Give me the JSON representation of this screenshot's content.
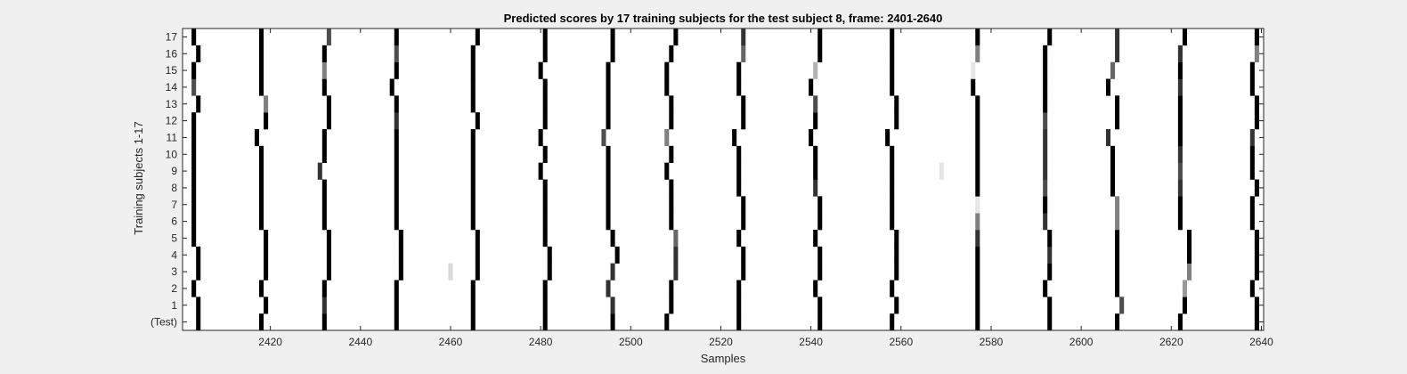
{
  "chart_data": {
    "type": "heatmap",
    "title": "Predicted scores by 17 training subjects for the test subject 8, frame: 2401-2640",
    "xlabel": "Samples",
    "ylabel": "Training subjects 1-17",
    "xlim": [
      2401,
      2640
    ],
    "xticks": [
      2420,
      2440,
      2460,
      2480,
      2500,
      2520,
      2540,
      2560,
      2580,
      2600,
      2620,
      2640
    ],
    "rows": [
      "(Test)",
      "1",
      "2",
      "3",
      "4",
      "5",
      "6",
      "7",
      "8",
      "9",
      "10",
      "11",
      "12",
      "13",
      "14",
      "15",
      "16",
      "17"
    ],
    "colormap": "white = 0 score, black = 1 score (grayscale)",
    "beats": {
      "(Test)": [
        [
          2404,
          1
        ],
        [
          2418,
          1
        ],
        [
          2432,
          1
        ],
        [
          2448,
          1
        ],
        [
          2465,
          1
        ],
        [
          2481,
          1
        ],
        [
          2496,
          1
        ],
        [
          2508,
          1
        ],
        [
          2524,
          1
        ],
        [
          2542,
          1
        ],
        [
          2558,
          1
        ],
        [
          2577,
          1
        ],
        [
          2593,
          1
        ],
        [
          2608,
          1
        ],
        [
          2622,
          1
        ],
        [
          2639,
          1
        ]
      ],
      "1": [
        [
          2404,
          1
        ],
        [
          2419,
          1
        ],
        [
          2432,
          0.8
        ],
        [
          2448,
          1
        ],
        [
          2465,
          1
        ],
        [
          2481,
          1
        ],
        [
          2496,
          0.8
        ],
        [
          2509,
          1
        ],
        [
          2524,
          1
        ],
        [
          2542,
          1
        ],
        [
          2559,
          1
        ],
        [
          2577,
          1
        ],
        [
          2593,
          1
        ],
        [
          2609,
          0.7
        ],
        [
          2623,
          1
        ],
        [
          2639,
          1
        ]
      ],
      "2": [
        [
          2403,
          1
        ],
        [
          2418,
          1
        ],
        [
          2432,
          1
        ],
        [
          2448,
          1
        ],
        [
          2465,
          1
        ],
        [
          2481,
          1
        ],
        [
          2495,
          0.8
        ],
        [
          2509,
          1
        ],
        [
          2524,
          1
        ],
        [
          2541,
          1
        ],
        [
          2558,
          1
        ],
        [
          2577,
          1
        ],
        [
          2592,
          1
        ],
        [
          2608,
          1
        ],
        [
          2623,
          0.4
        ],
        [
          2638,
          1
        ]
      ],
      "3": [
        [
          2404,
          1
        ],
        [
          2419,
          1
        ],
        [
          2433,
          1
        ],
        [
          2449,
          1
        ],
        [
          2460,
          0.15
        ],
        [
          2466,
          1
        ],
        [
          2482,
          1
        ],
        [
          2496,
          0.8
        ],
        [
          2510,
          0.8
        ],
        [
          2525,
          1
        ],
        [
          2542,
          1
        ],
        [
          2559,
          1
        ],
        [
          2577,
          1
        ],
        [
          2593,
          1
        ],
        [
          2608,
          1
        ],
        [
          2624,
          0.5
        ],
        [
          2639,
          1
        ]
      ],
      "4": [
        [
          2404,
          1
        ],
        [
          2419,
          1
        ],
        [
          2433,
          1
        ],
        [
          2449,
          1
        ],
        [
          2466,
          1
        ],
        [
          2482,
          1
        ],
        [
          2497,
          1
        ],
        [
          2510,
          0.8
        ],
        [
          2525,
          1
        ],
        [
          2542,
          1
        ],
        [
          2559,
          1
        ],
        [
          2577,
          1
        ],
        [
          2593,
          0.8
        ],
        [
          2608,
          1
        ],
        [
          2624,
          1
        ],
        [
          2639,
          1
        ]
      ],
      "5": [
        [
          2403,
          1
        ],
        [
          2419,
          1
        ],
        [
          2433,
          1
        ],
        [
          2449,
          1
        ],
        [
          2466,
          1
        ],
        [
          2481,
          1
        ],
        [
          2496,
          1
        ],
        [
          2510,
          0.6
        ],
        [
          2524,
          1
        ],
        [
          2541,
          1
        ],
        [
          2559,
          1
        ],
        [
          2577,
          0.8
        ],
        [
          2593,
          1
        ],
        [
          2608,
          1
        ],
        [
          2624,
          1
        ],
        [
          2639,
          1
        ]
      ],
      "6": [
        [
          2403,
          1
        ],
        [
          2418,
          1
        ],
        [
          2432,
          1
        ],
        [
          2448,
          1
        ],
        [
          2465,
          1
        ],
        [
          2481,
          1
        ],
        [
          2495,
          1
        ],
        [
          2509,
          1
        ],
        [
          2525,
          1
        ],
        [
          2542,
          1
        ],
        [
          2558,
          1
        ],
        [
          2577,
          0.5
        ],
        [
          2592,
          0.8
        ],
        [
          2608,
          0.5
        ],
        [
          2622,
          1
        ],
        [
          2638,
          1
        ]
      ],
      "7": [
        [
          2403,
          1
        ],
        [
          2418,
          1
        ],
        [
          2432,
          1
        ],
        [
          2448,
          1
        ],
        [
          2465,
          1
        ],
        [
          2481,
          1
        ],
        [
          2495,
          1
        ],
        [
          2509,
          1
        ],
        [
          2525,
          1
        ],
        [
          2542,
          1
        ],
        [
          2558,
          1
        ],
        [
          2577,
          0.1
        ],
        [
          2592,
          1
        ],
        [
          2608,
          0.5
        ],
        [
          2622,
          1
        ],
        [
          2638,
          1
        ]
      ],
      "8": [
        [
          2403,
          1
        ],
        [
          2418,
          1
        ],
        [
          2432,
          1
        ],
        [
          2448,
          1
        ],
        [
          2465,
          1
        ],
        [
          2481,
          1
        ],
        [
          2495,
          1
        ],
        [
          2509,
          1
        ],
        [
          2524,
          1
        ],
        [
          2541,
          0.8
        ],
        [
          2558,
          1
        ],
        [
          2577,
          1
        ],
        [
          2592,
          0.7
        ],
        [
          2607,
          1
        ],
        [
          2622,
          0.8
        ],
        [
          2639,
          1
        ]
      ],
      "9": [
        [
          2403,
          1
        ],
        [
          2418,
          1
        ],
        [
          2431,
          0.8
        ],
        [
          2448,
          1
        ],
        [
          2465,
          1
        ],
        [
          2480,
          1
        ],
        [
          2495,
          1
        ],
        [
          2508,
          1
        ],
        [
          2524,
          1
        ],
        [
          2541,
          1
        ],
        [
          2558,
          1
        ],
        [
          2569,
          0.1
        ],
        [
          2577,
          1
        ],
        [
          2592,
          0.8
        ],
        [
          2607,
          1
        ],
        [
          2622,
          0.7
        ],
        [
          2638,
          1
        ]
      ],
      "10": [
        [
          2403,
          1
        ],
        [
          2418,
          1
        ],
        [
          2432,
          1
        ],
        [
          2448,
          1
        ],
        [
          2465,
          1
        ],
        [
          2481,
          1
        ],
        [
          2495,
          1
        ],
        [
          2509,
          1
        ],
        [
          2524,
          1
        ],
        [
          2541,
          1
        ],
        [
          2558,
          1
        ],
        [
          2577,
          1
        ],
        [
          2592,
          0.8
        ],
        [
          2607,
          1
        ],
        [
          2622,
          0.8
        ],
        [
          2638,
          1
        ]
      ],
      "11": [
        [
          2403,
          1
        ],
        [
          2417,
          1
        ],
        [
          2432,
          1
        ],
        [
          2448,
          1
        ],
        [
          2465,
          1
        ],
        [
          2480,
          1
        ],
        [
          2494,
          0.7
        ],
        [
          2508,
          0.5
        ],
        [
          2523,
          1
        ],
        [
          2540,
          1
        ],
        [
          2557,
          1
        ],
        [
          2577,
          1
        ],
        [
          2592,
          0.8
        ],
        [
          2606,
          0.8
        ],
        [
          2622,
          1
        ],
        [
          2638,
          0.8
        ]
      ],
      "12": [
        [
          2403,
          1
        ],
        [
          2419,
          1
        ],
        [
          2433,
          1
        ],
        [
          2448,
          0.8
        ],
        [
          2466,
          1
        ],
        [
          2481,
          1
        ],
        [
          2495,
          1
        ],
        [
          2509,
          1
        ],
        [
          2525,
          1
        ],
        [
          2541,
          1
        ],
        [
          2559,
          1
        ],
        [
          2577,
          1
        ],
        [
          2592,
          0.7
        ],
        [
          2608,
          1
        ],
        [
          2622,
          1
        ],
        [
          2639,
          1
        ]
      ],
      "13": [
        [
          2404,
          1
        ],
        [
          2419,
          0.5
        ],
        [
          2433,
          1
        ],
        [
          2448,
          1
        ],
        [
          2465,
          1
        ],
        [
          2481,
          1
        ],
        [
          2495,
          1
        ],
        [
          2509,
          1
        ],
        [
          2525,
          1
        ],
        [
          2541,
          0.7
        ],
        [
          2559,
          1
        ],
        [
          2577,
          1
        ],
        [
          2592,
          1
        ],
        [
          2608,
          1
        ],
        [
          2622,
          1
        ],
        [
          2639,
          1
        ]
      ],
      "14": [
        [
          2403,
          0.7
        ],
        [
          2418,
          1
        ],
        [
          2432,
          1
        ],
        [
          2447,
          1
        ],
        [
          2465,
          1
        ],
        [
          2481,
          1
        ],
        [
          2495,
          1
        ],
        [
          2508,
          1
        ],
        [
          2524,
          1
        ],
        [
          2540,
          1
        ],
        [
          2558,
          1
        ],
        [
          2576,
          1
        ],
        [
          2592,
          1
        ],
        [
          2606,
          1
        ],
        [
          2622,
          0.8
        ],
        [
          2638,
          1
        ]
      ],
      "15": [
        [
          2403,
          1
        ],
        [
          2418,
          1
        ],
        [
          2432,
          0.5
        ],
        [
          2448,
          1
        ],
        [
          2465,
          1
        ],
        [
          2480,
          1
        ],
        [
          2495,
          1
        ],
        [
          2508,
          1
        ],
        [
          2524,
          1
        ],
        [
          2541,
          0.3
        ],
        [
          2558,
          1
        ],
        [
          2576,
          0.1
        ],
        [
          2592,
          1
        ],
        [
          2607,
          0.6
        ],
        [
          2622,
          1
        ],
        [
          2638,
          1
        ]
      ],
      "16": [
        [
          2404,
          1
        ],
        [
          2418,
          1
        ],
        [
          2432,
          1
        ],
        [
          2448,
          0.7
        ],
        [
          2465,
          1
        ],
        [
          2481,
          1
        ],
        [
          2496,
          1
        ],
        [
          2509,
          1
        ],
        [
          2525,
          0.6
        ],
        [
          2542,
          1
        ],
        [
          2558,
          1
        ],
        [
          2577,
          0.5
        ],
        [
          2592,
          1
        ],
        [
          2608,
          0.8
        ],
        [
          2622,
          0.8
        ],
        [
          2639,
          0.5
        ]
      ],
      "17": [
        [
          2403,
          1
        ],
        [
          2418,
          1
        ],
        [
          2433,
          0.7
        ],
        [
          2448,
          1
        ],
        [
          2466,
          1
        ],
        [
          2481,
          1
        ],
        [
          2496,
          1
        ],
        [
          2510,
          1
        ],
        [
          2525,
          0.8
        ],
        [
          2542,
          1
        ],
        [
          2558,
          1
        ],
        [
          2577,
          1
        ],
        [
          2593,
          1
        ],
        [
          2608,
          0.8
        ],
        [
          2623,
          1
        ],
        [
          2639,
          1
        ]
      ]
    }
  }
}
